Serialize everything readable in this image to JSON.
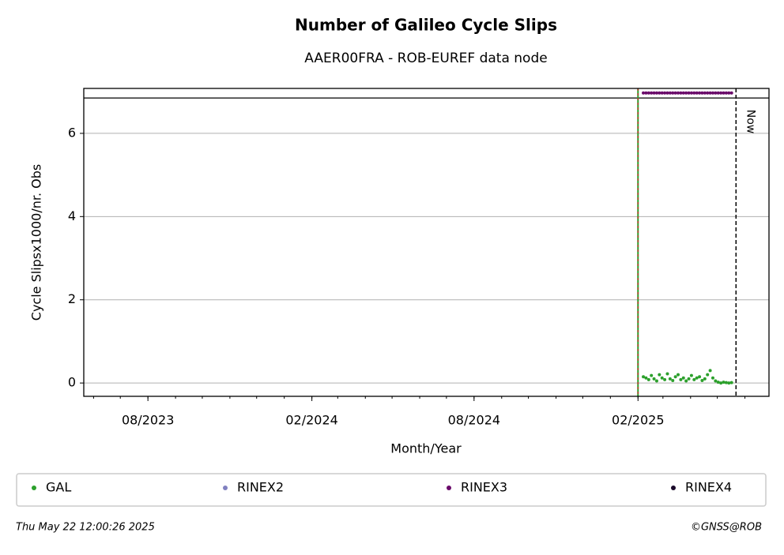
{
  "chart_data": {
    "type": "scatter",
    "title": "Number of Galileo Cycle Slips",
    "subtitle": "AAER00FRA - ROB-EUREF data node",
    "x_label": "Month/Year",
    "y_label": "Cycle Slipsx1000/nr. Obs",
    "x": [
      "2025-02-07",
      "2025-02-10",
      "2025-02-13",
      "2025-02-16",
      "2025-02-19",
      "2025-02-22",
      "2025-02-25",
      "2025-02-28",
      "2025-03-03",
      "2025-03-06",
      "2025-03-09",
      "2025-03-12",
      "2025-03-15",
      "2025-03-18",
      "2025-03-21",
      "2025-03-24",
      "2025-03-27",
      "2025-03-30",
      "2025-04-02",
      "2025-04-05",
      "2025-04-08",
      "2025-04-11",
      "2025-04-14",
      "2025-04-17",
      "2025-04-20",
      "2025-04-23",
      "2025-04-26",
      "2025-04-29",
      "2025-05-02",
      "2025-05-05",
      "2025-05-08",
      "2025-05-11",
      "2025-05-14",
      "2025-05-17"
    ],
    "series": [
      {
        "name": "GAL",
        "color": "#2ca02c",
        "values": [
          0.15,
          0.12,
          0.08,
          0.18,
          0.1,
          0.05,
          0.2,
          0.12,
          0.08,
          0.22,
          0.1,
          0.06,
          0.15,
          0.2,
          0.08,
          0.12,
          0.05,
          0.1,
          0.18,
          0.08,
          0.12,
          0.15,
          0.06,
          0.1,
          0.2,
          0.3,
          0.12,
          0.05,
          0.02,
          0.0,
          0.02,
          0.01,
          0.0,
          0.01
        ]
      },
      {
        "name": "RINEX2",
        "color": "#8080c0",
        "values": [
          null,
          null,
          null,
          null,
          null,
          null,
          null,
          null,
          null,
          null,
          null,
          null,
          null,
          null,
          null,
          null,
          null,
          null,
          null,
          null,
          null,
          null,
          null,
          null,
          null,
          null,
          null,
          null,
          null,
          null,
          null,
          null,
          null,
          null
        ]
      },
      {
        "name": "RINEX3",
        "color": "#6a0a6a",
        "values": [
          6.97,
          6.97,
          6.97,
          6.97,
          6.97,
          6.97,
          6.97,
          6.97,
          6.97,
          6.97,
          6.97,
          6.97,
          6.97,
          6.97,
          6.97,
          6.97,
          6.97,
          6.97,
          6.97,
          6.97,
          6.97,
          6.97,
          6.97,
          6.97,
          6.97,
          6.97,
          6.97,
          6.97,
          6.97,
          6.97,
          6.97,
          6.97,
          6.97,
          6.97
        ]
      },
      {
        "name": "RINEX4",
        "color": "#1a0a2a",
        "values": [
          null,
          null,
          null,
          null,
          null,
          null,
          null,
          null,
          null,
          null,
          null,
          null,
          null,
          null,
          null,
          null,
          null,
          null,
          null,
          null,
          null,
          null,
          null,
          null,
          null,
          null,
          null,
          null,
          null,
          null,
          null,
          null,
          null,
          null
        ]
      }
    ],
    "xlim": [
      "2023-05-21",
      "2025-06-28"
    ],
    "xticks": [
      {
        "value": "2023-08-01",
        "label": "08/2023"
      },
      {
        "value": "2024-02-01",
        "label": "02/2024"
      },
      {
        "value": "2024-08-01",
        "label": "08/2024"
      },
      {
        "value": "2025-02-01",
        "label": "02/2025"
      }
    ],
    "ylim": [
      -0.32,
      7.08
    ],
    "yticks": [
      0,
      2,
      4,
      6
    ],
    "grid": true,
    "band_line": 6.85,
    "start_line": "2025-02-01",
    "now": "2025-05-22",
    "now_label": "Now",
    "timestamp": "Thu May 22 12:00:26 2025",
    "credit": "©GNSS@ROB"
  }
}
